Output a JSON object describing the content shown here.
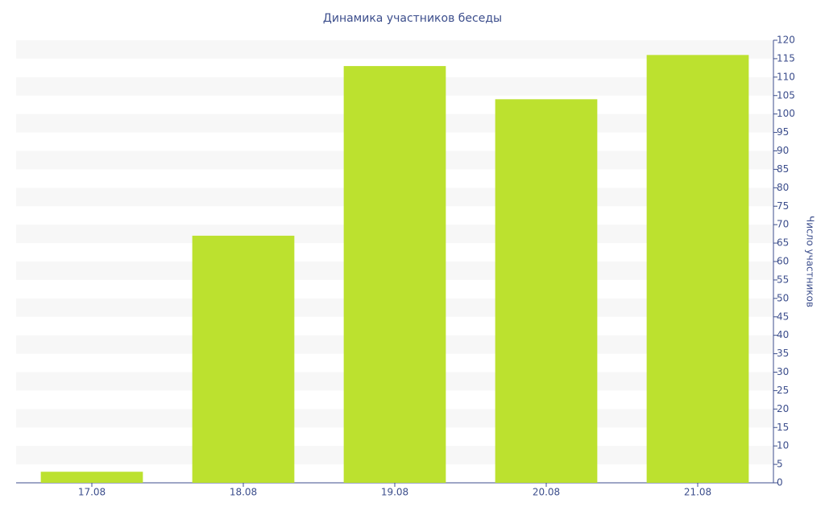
{
  "chart_data": {
    "type": "bar",
    "title": "Динамика участников беседы",
    "y_label": "Число участников",
    "categories": [
      "17.08",
      "18.08",
      "19.08",
      "20.08",
      "21.08"
    ],
    "values": [
      3,
      67,
      113,
      104,
      116
    ],
    "color": "#bce12f",
    "ylim": [
      0,
      120
    ],
    "yticks": [
      0,
      5,
      10,
      15,
      20,
      25,
      30,
      35,
      40,
      45,
      50,
      55,
      60,
      65,
      70,
      75,
      80,
      85,
      90,
      95,
      100,
      105,
      110,
      115,
      120
    ],
    "grid": true
  }
}
